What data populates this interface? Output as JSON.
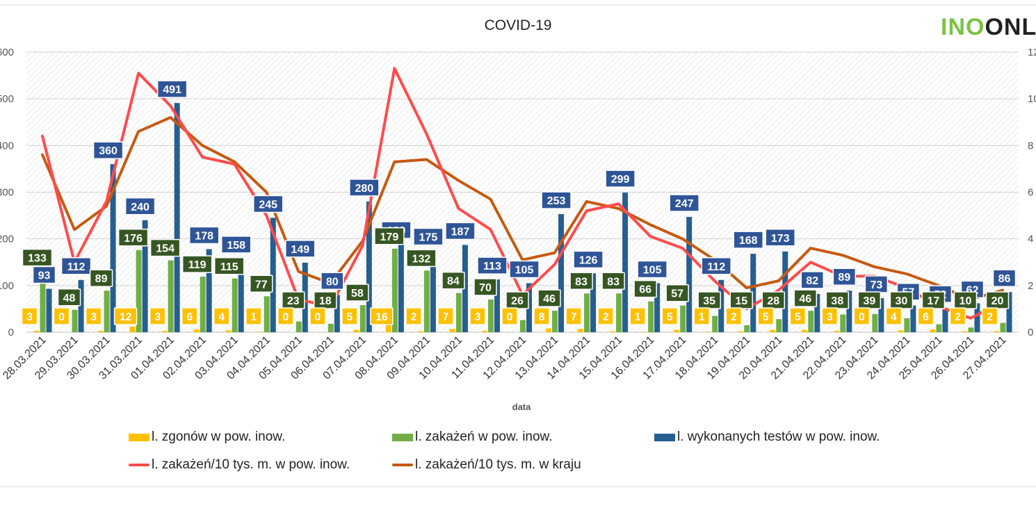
{
  "header": {
    "logo_text": "INOONLI"
  },
  "colors": {
    "deaths": "#FFC000",
    "infections": "#70AD47",
    "tests": "#255E91",
    "rate_local": "#FF4B4B",
    "rate_country": "#C55A11",
    "infection_label_bg": "#375623",
    "test_label_bg": "#2F5597",
    "logo_green": "#7CC242",
    "logo_dark": "#222222"
  },
  "chart_data": {
    "type": "bar",
    "title": "COVID-19",
    "xlabel": "data",
    "ylabel": "",
    "ylim": [
      0,
      600
    ],
    "y2lim": [
      0,
      12
    ],
    "y_ticks": [
      "0",
      "100",
      "200",
      "300",
      "400",
      "500",
      "600"
    ],
    "y2_ticks": [
      "0",
      "2",
      "4",
      "6",
      "8",
      "10",
      "12"
    ],
    "grid": true,
    "legend_position": "bottom",
    "categories": [
      "28.03.2021",
      "29.03.2021",
      "30.03.2021",
      "31.03.2021",
      "01.04.2021",
      "02.04.2021",
      "03.04.2021",
      "04.04.2021",
      "05.04.2021",
      "06.04.2021",
      "07.04.2021",
      "08.04.2021",
      "09.04.2021",
      "10.04.2021",
      "11.04.2021",
      "12.04.2021",
      "13.04.2021",
      "14.04.2021",
      "15.04.2021",
      "16.04.2021",
      "17.04.2021",
      "18.04.2021",
      "19.04.2021",
      "20.04.2021",
      "21.04.2021",
      "22.04.2021",
      "23.04.2021",
      "24.04.2021",
      "25.04.2021",
      "26.04.2021",
      "27.04.2021"
    ],
    "series": [
      {
        "name": "l. zgonów w pow. inow.",
        "type": "bar",
        "axis": "left",
        "values": [
          3,
          0,
          3,
          12,
          3,
          6,
          4,
          1,
          0,
          0,
          5,
          16,
          2,
          7,
          3,
          0,
          8,
          7,
          2,
          1,
          5,
          1,
          2,
          5,
          5,
          3,
          0,
          4,
          6,
          2,
          2
        ]
      },
      {
        "name": "l. zakażeń w pow. inow.",
        "type": "bar",
        "axis": "left",
        "values": [
          133,
          48,
          89,
          176,
          154,
          119,
          115,
          77,
          23,
          18,
          58,
          179,
          132,
          84,
          70,
          26,
          46,
          83,
          83,
          66,
          57,
          35,
          15,
          28,
          46,
          38,
          39,
          30,
          17,
          10,
          20
        ]
      },
      {
        "name": "l. wykonanych testów w pow. inow.",
        "type": "bar",
        "axis": "left",
        "values": [
          93,
          112,
          360,
          240,
          491,
          178,
          158,
          245,
          149,
          80,
          280,
          189,
          175,
          187,
          113,
          105,
          253,
          126,
          299,
          105,
          247,
          112,
          168,
          173,
          82,
          89,
          73,
          57,
          52,
          62,
          86
        ]
      },
      {
        "name": "l. zakażeń/10 tys. m. w pow. inow.",
        "type": "line",
        "axis": "right",
        "values": [
          8.4,
          3.0,
          5.6,
          11.1,
          9.7,
          7.5,
          7.2,
          5.0,
          1.4,
          1.1,
          3.7,
          11.3,
          8.5,
          5.3,
          4.4,
          1.6,
          2.9,
          5.2,
          5.5,
          4.1,
          3.6,
          2.2,
          1.0,
          1.8,
          3.0,
          2.4,
          2.4,
          1.9,
          1.1,
          0.6,
          1.3
        ]
      },
      {
        "name": "l. zakażeń/10 tys. m. w kraju",
        "type": "line",
        "axis": "right",
        "values": [
          7.6,
          4.4,
          5.4,
          8.6,
          9.2,
          8.0,
          7.3,
          6.0,
          2.6,
          2.1,
          3.9,
          7.3,
          7.4,
          6.5,
          5.7,
          3.1,
          3.4,
          5.6,
          5.3,
          4.6,
          4.0,
          3.1,
          1.9,
          2.2,
          3.6,
          3.3,
          2.8,
          2.5,
          2.0,
          1.4,
          1.8
        ]
      }
    ]
  }
}
